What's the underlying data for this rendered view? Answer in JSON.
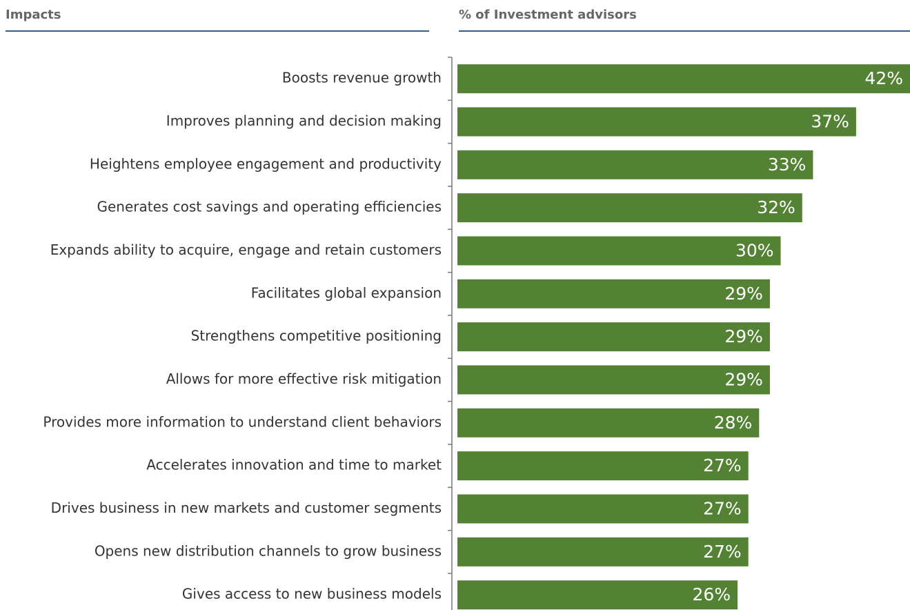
{
  "chart_data": {
    "type": "barh",
    "ylabel": "Impacts",
    "xlabel": "% of Investment advisors",
    "categories": [
      "Boosts revenue growth",
      "Improves planning and decision making",
      "Heightens employee engagement and productivity",
      "Generates cost savings and operating efficiencies",
      "Expands ability to acquire, engage and retain customers",
      "Facilitates global expansion",
      "Strengthens competitive positioning",
      "Allows for more effective risk mitigation",
      "Provides more information to understand client behaviors",
      "Accelerates innovation and time to market",
      "Drives business in new markets and customer segments",
      "Opens new distribution channels to grow business",
      "Gives access to new business models"
    ],
    "values": [
      42,
      37,
      33,
      32,
      30,
      29,
      29,
      29,
      28,
      27,
      27,
      27,
      26
    ],
    "value_labels": [
      "42%",
      "37%",
      "33%",
      "32%",
      "30%",
      "29%",
      "29%",
      "29%",
      "28%",
      "27%",
      "27%",
      "27%",
      "26%"
    ],
    "color": "#548235",
    "xlim": [
      0,
      42
    ]
  }
}
